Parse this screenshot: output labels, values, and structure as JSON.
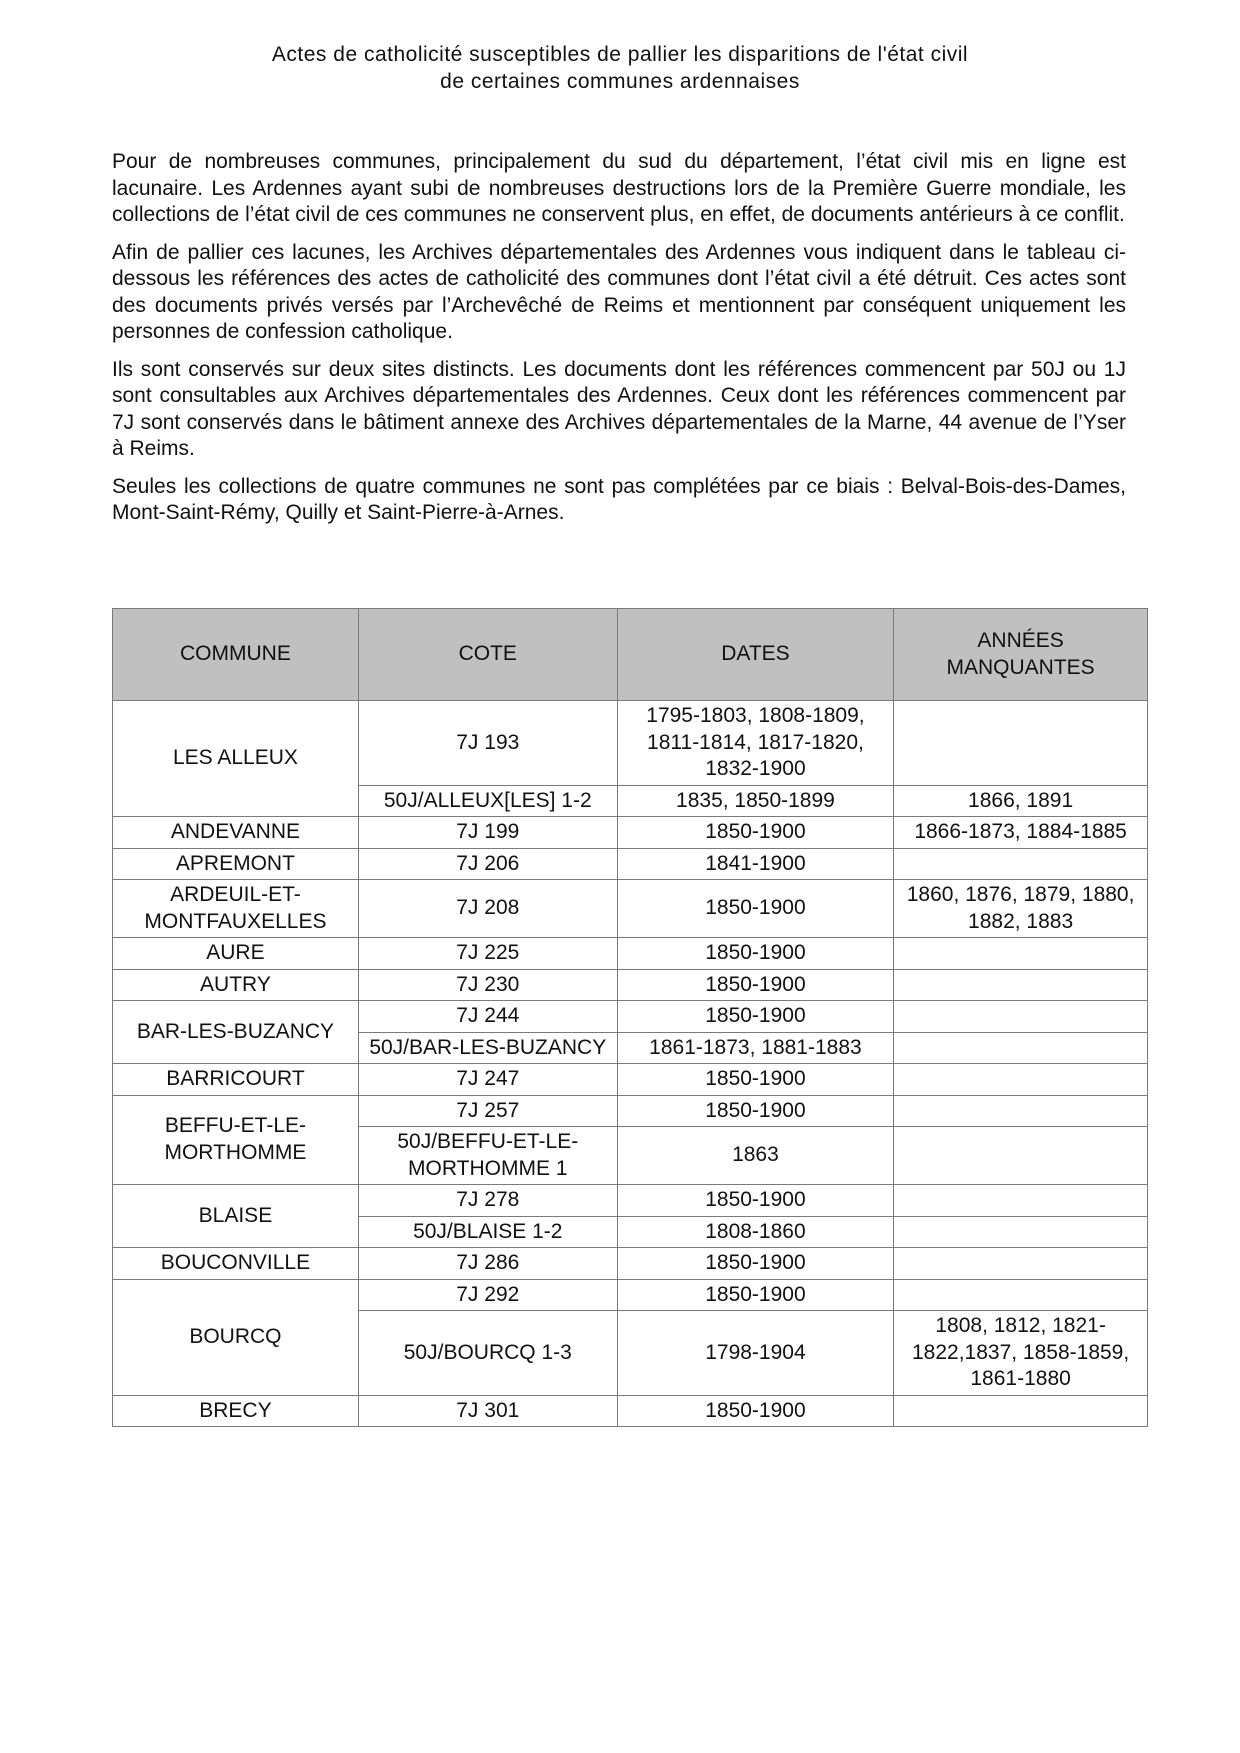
{
  "title": {
    "line1": "Actes de catholicité susceptibles de pallier les disparitions de l'état civil",
    "line2": "de certaines communes ardennaises"
  },
  "intro": [
    "Pour de nombreuses communes, principalement du sud du département, l’état civil mis en ligne est lacunaire. Les Ardennes ayant subi de nombreuses destructions lors de la Première Guerre mondiale, les collections de l’état civil de ces communes ne conservent plus, en effet, de documents antérieurs à ce conflit.",
    "Afin de pallier ces lacunes, les Archives départementales des Ardennes vous indiquent dans le tableau ci-dessous les références des actes de catholicité des communes dont l’état civil a été détruit. Ces actes sont des documents privés versés par l’Archevêché de Reims et mentionnent par conséquent uniquement les personnes de confession catholique.",
    "Ils sont conservés sur deux sites distincts. Les documents dont les références commencent par 50J ou 1J sont consultables aux Archives départementales des Ardennes. Ceux dont les références commencent par 7J sont conservés dans le bâtiment annexe des Archives départementales de la Marne, 44 avenue de l’Yser à Reims.",
    "Seules les collections de quatre communes ne sont pas complétées par ce biais : Belval-Bois-des-Dames, Mont-Saint-Rémy, Quilly et Saint-Pierre-à-Arnes."
  ],
  "table": {
    "header_bg": "#c0c0c0",
    "headers": [
      "COMMUNE",
      "COTE",
      "DATES",
      "ANNÉES MANQUANTES"
    ],
    "groups": [
      {
        "commune": "LES ALLEUX",
        "rows": [
          {
            "cote": "7J 193",
            "dates": "1795-1803, 1808-1809, 1811-1814, 1817-1820, 1832-1900",
            "manquantes": ""
          },
          {
            "cote": "50J/ALLEUX[LES] 1-2",
            "dates": "1835, 1850-1899",
            "manquantes": "1866, 1891"
          }
        ]
      },
      {
        "commune": "ANDEVANNE",
        "rows": [
          {
            "cote": "7J 199",
            "dates": "1850-1900",
            "manquantes": "1866-1873, 1884-1885"
          }
        ]
      },
      {
        "commune": "APREMONT",
        "rows": [
          {
            "cote": "7J 206",
            "dates": "1841-1900",
            "manquantes": ""
          }
        ]
      },
      {
        "commune": "ARDEUIL-ET-MONTFAUXELLES",
        "rows": [
          {
            "cote": "7J 208",
            "dates": "1850-1900",
            "manquantes": "1860, 1876, 1879, 1880, 1882, 1883"
          }
        ]
      },
      {
        "commune": "AURE",
        "rows": [
          {
            "cote": "7J 225",
            "dates": "1850-1900",
            "manquantes": ""
          }
        ]
      },
      {
        "commune": "AUTRY",
        "rows": [
          {
            "cote": "7J 230",
            "dates": "1850-1900",
            "manquantes": ""
          }
        ]
      },
      {
        "commune": "BAR-LES-BUZANCY",
        "rows": [
          {
            "cote": "7J 244",
            "dates": "1850-1900",
            "manquantes": ""
          },
          {
            "cote": "50J/BAR-LES-BUZANCY",
            "dates": "1861-1873, 1881-1883",
            "manquantes": ""
          }
        ]
      },
      {
        "commune": "BARRICOURT",
        "rows": [
          {
            "cote": "7J 247",
            "dates": "1850-1900",
            "manquantes": ""
          }
        ]
      },
      {
        "commune": "BEFFU-ET-LE-MORTHOMME",
        "rows": [
          {
            "cote": "7J 257",
            "dates": "1850-1900",
            "manquantes": ""
          },
          {
            "cote": "50J/BEFFU-ET-LE-MORTHOMME 1",
            "dates": "1863",
            "manquantes": ""
          }
        ]
      },
      {
        "commune": "BLAISE",
        "rows": [
          {
            "cote": "7J 278",
            "dates": "1850-1900",
            "manquantes": ""
          },
          {
            "cote": "50J/BLAISE 1-2",
            "dates": "1808-1860",
            "manquantes": ""
          }
        ]
      },
      {
        "commune": "BOUCONVILLE",
        "rows": [
          {
            "cote": "7J 286",
            "dates": "1850-1900",
            "manquantes": ""
          }
        ]
      },
      {
        "commune": "BOURCQ",
        "rows": [
          {
            "cote": "7J 292",
            "dates": "1850-1900",
            "manquantes": ""
          },
          {
            "cote": "50J/BOURCQ 1-3",
            "dates": "1798-1904",
            "manquantes": "1808, 1812, 1821-1822,1837, 1858-1859, 1861-1880"
          }
        ]
      },
      {
        "commune": "BRECY",
        "rows": [
          {
            "cote": "7J 301",
            "dates": "1850-1900",
            "manquantes": ""
          }
        ]
      }
    ]
  }
}
